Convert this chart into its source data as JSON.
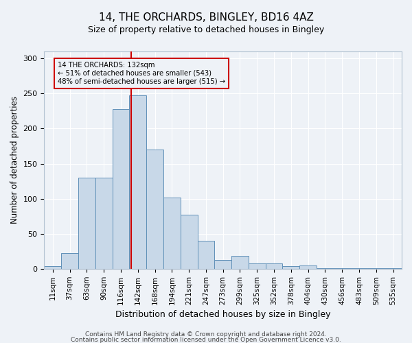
{
  "title": "14, THE ORCHARDS, BINGLEY, BD16 4AZ",
  "subtitle": "Size of property relative to detached houses in Bingley",
  "xlabel": "Distribution of detached houses by size in Bingley",
  "ylabel": "Number of detached properties",
  "categories": [
    "11sqm",
    "37sqm",
    "63sqm",
    "90sqm",
    "116sqm",
    "142sqm",
    "168sqm",
    "194sqm",
    "221sqm",
    "247sqm",
    "273sqm",
    "299sqm",
    "325sqm",
    "352sqm",
    "378sqm",
    "404sqm",
    "430sqm",
    "456sqm",
    "483sqm",
    "509sqm",
    "535sqm"
  ],
  "values": [
    4,
    22,
    130,
    130,
    228,
    247,
    170,
    102,
    77,
    40,
    13,
    18,
    8,
    8,
    4,
    5,
    1,
    1,
    1,
    1,
    1
  ],
  "bar_color": "#c8d8e8",
  "bar_edge_color": "#6090b8",
  "highlight_label": "14 THE ORCHARDS: 132sqm",
  "annotation_line1": "← 51% of detached houses are smaller (543)",
  "annotation_line2": "48% of semi-detached houses are larger (515) →",
  "vline_color": "#cc0000",
  "annotation_box_color": "#cc0000",
  "background_color": "#eef2f7",
  "grid_color": "#ffffff",
  "ylim": [
    0,
    310
  ],
  "footer_line1": "Contains HM Land Registry data © Crown copyright and database right 2024.",
  "footer_line2": "Contains public sector information licensed under the Open Government Licence v3.0."
}
